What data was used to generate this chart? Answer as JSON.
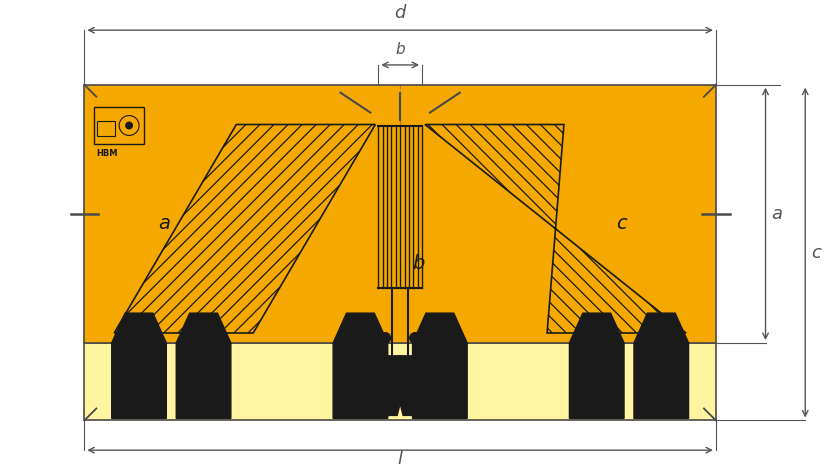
{
  "bg_color": "none",
  "yellow_dark": "#F5A800",
  "yellow_light": "#FFF5A0",
  "dark_gray": "#1a1a1a",
  "line_color": "#4a4a4a",
  "fig_width": 8.4,
  "fig_height": 4.72,
  "labels": {
    "a_inner": "a",
    "b_center": "b",
    "c_right": "c",
    "d_top": "d",
    "b_dim_top": "b",
    "l_bottom": "l",
    "a_dim": "a",
    "c_dim": "c"
  }
}
